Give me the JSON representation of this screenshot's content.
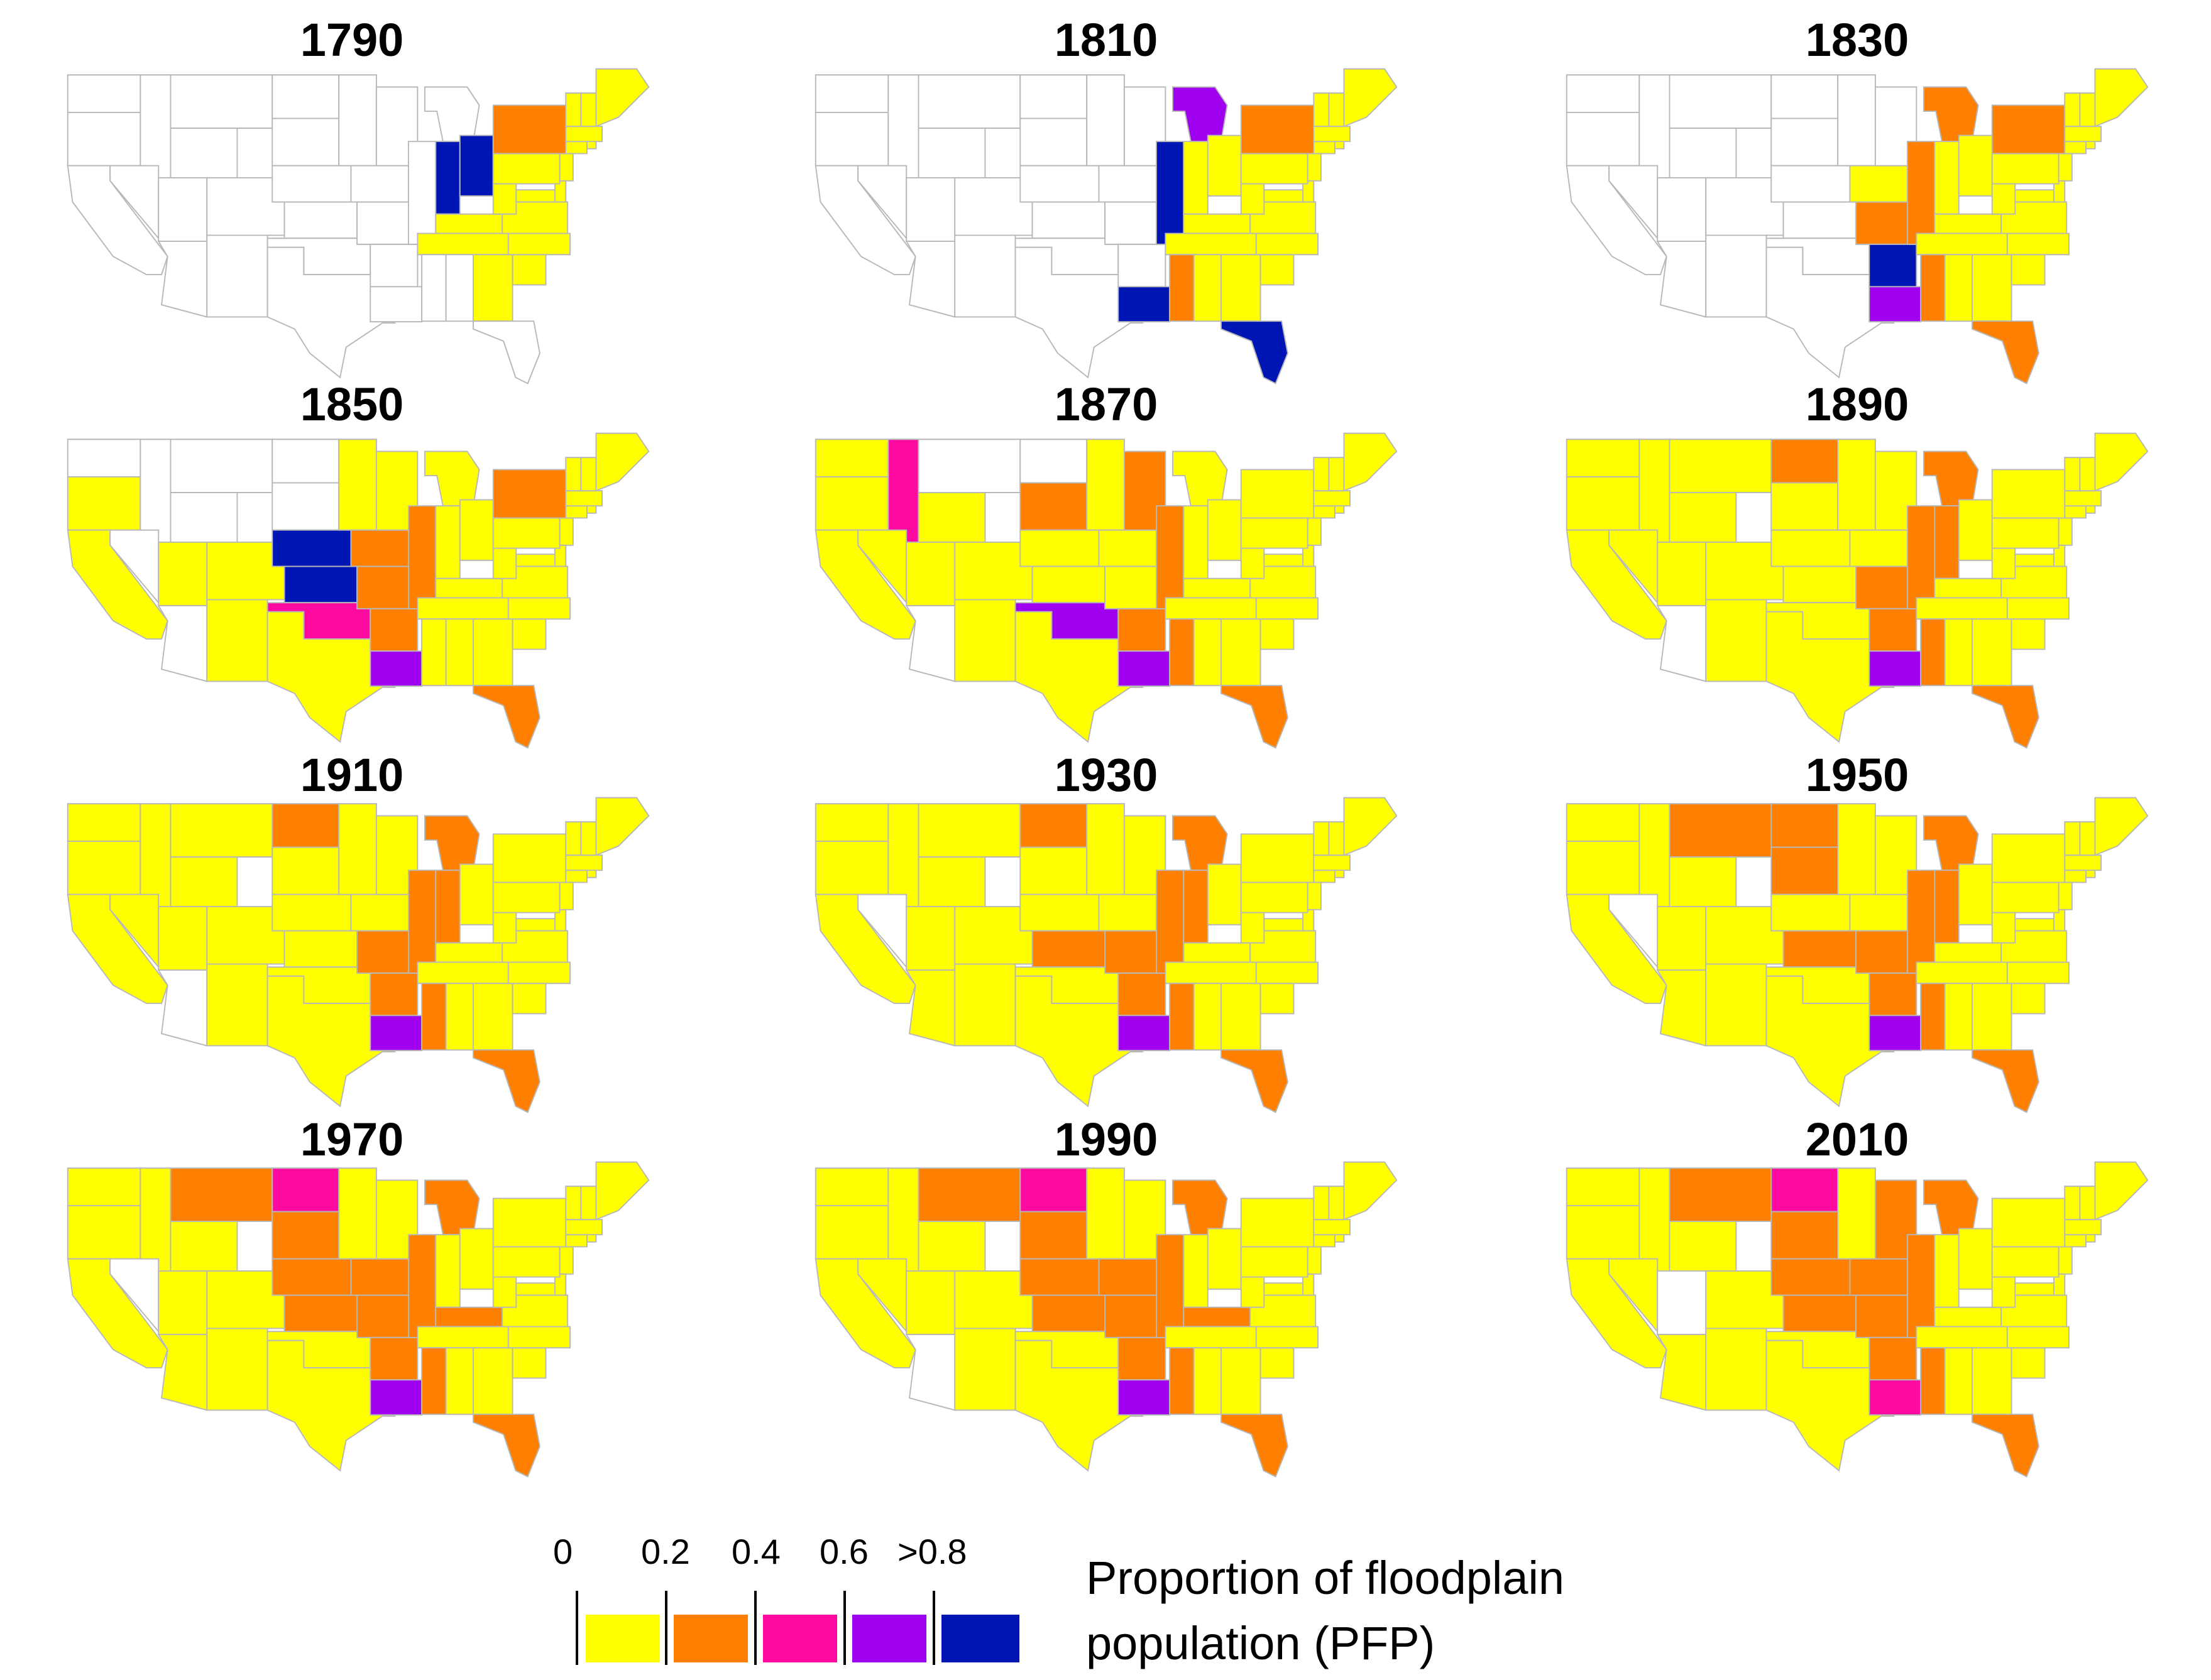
{
  "legend": {
    "title_line1": "Proportion of floodplain",
    "title_line2": "population (PFP)",
    "ticks": [
      "0",
      "0.2",
      "0.4",
      "0.6",
      ">0.8"
    ],
    "classes": [
      {
        "range": "0-0.2",
        "color": "#ffff00"
      },
      {
        "range": "0.2-0.4",
        "color": "#ff8000"
      },
      {
        "range": "0.4-0.6",
        "color": "#ff0aa0"
      },
      {
        "range": "0.6-0.8",
        "color": "#a000f0"
      },
      {
        "range": ">0.8",
        "color": "#0016b4"
      }
    ]
  },
  "colors": {
    "no_data": "#ffffff",
    "boundary": "#b8b8b8",
    "c1": "#ffff00",
    "c2": "#ff8000",
    "c3": "#ff0aa0",
    "c4": "#a000f0",
    "c5": "#0016b4"
  },
  "panels": [
    {
      "year": "1790",
      "classes": {
        "OH": 5,
        "IN": 5,
        "KY": 1,
        "TN": 1,
        "NY": 2,
        "VT": 1,
        "NH": 1,
        "ME": 1,
        "MA": 1,
        "RI": 1,
        "CT": 1,
        "NJ": 1,
        "PA": 1,
        "DE": 1,
        "MD": 1,
        "VA": 1,
        "WV": 1,
        "NC": 1,
        "SC": 1,
        "GA": 1
      }
    },
    {
      "year": "1810",
      "classes": {
        "IL": 5,
        "MI": 4,
        "IN": 1,
        "OH": 1,
        "KY": 1,
        "TN": 1,
        "NY": 2,
        "VT": 1,
        "NH": 1,
        "ME": 1,
        "MA": 1,
        "RI": 1,
        "CT": 1,
        "NJ": 1,
        "PA": 1,
        "DE": 1,
        "MD": 1,
        "VA": 1,
        "WV": 1,
        "NC": 1,
        "SC": 1,
        "GA": 1,
        "AL": 1,
        "MS": 2,
        "LA": 5,
        "FL": 5
      }
    },
    {
      "year": "1830",
      "classes": {
        "IA": 1,
        "MO": 2,
        "AR": 5,
        "LA": 4,
        "IL": 2,
        "MI": 2,
        "MS": 2,
        "IN": 1,
        "OH": 1,
        "KY": 1,
        "TN": 1,
        "NY": 2,
        "VT": 1,
        "NH": 1,
        "ME": 1,
        "MA": 1,
        "RI": 1,
        "CT": 1,
        "NJ": 1,
        "PA": 1,
        "DE": 1,
        "MD": 1,
        "VA": 1,
        "WV": 1,
        "NC": 1,
        "SC": 1,
        "GA": 1,
        "AL": 1,
        "FL": 2
      }
    },
    {
      "year": "1850",
      "classes": {
        "CA": 1,
        "OR": 1,
        "UT": 1,
        "CO": 1,
        "NM": 1,
        "TX": 1,
        "NE": 5,
        "KS": 5,
        "OK": 3,
        "MN": 1,
        "IA": 2,
        "MO": 2,
        "AR": 2,
        "LA": 4,
        "WI": 1,
        "IL": 2,
        "MI": 1,
        "IN": 1,
        "OH": 1,
        "KY": 1,
        "TN": 1,
        "MS": 1,
        "AL": 1,
        "GA": 1,
        "FL": 2,
        "SC": 1,
        "NC": 1,
        "VA": 1,
        "WV": 1,
        "MD": 1,
        "DE": 1,
        "PA": 1,
        "NJ": 1,
        "NY": 2,
        "CT": 1,
        "RI": 1,
        "MA": 1,
        "VT": 1,
        "NH": 1,
        "ME": 1
      }
    },
    {
      "year": "1870",
      "all": 1,
      "classes": {
        "ID": 3,
        "MT": 0,
        "ND": 0,
        "SD": 2,
        "AZ": 0,
        "OK": 4,
        "WI": 2,
        "IL": 2,
        "AR": 2,
        "LA": 4,
        "MS": 2,
        "FL": 2
      }
    },
    {
      "year": "1890",
      "all": 1,
      "classes": {
        "AZ": 0,
        "ND": 2,
        "AR": 2,
        "LA": 4,
        "MS": 2,
        "IL": 2,
        "IN": 2,
        "MI": 2,
        "MO": 2,
        "FL": 2
      }
    },
    {
      "year": "1910",
      "all": 1,
      "classes": {
        "AZ": 0,
        "ND": 2,
        "MO": 2,
        "AR": 2,
        "IL": 2,
        "IN": 2,
        "MI": 2,
        "LA": 4,
        "MS": 2,
        "FL": 2
      }
    },
    {
      "year": "1930",
      "all": 1,
      "classes": {
        "NV": 0,
        "ND": 2,
        "KS": 2,
        "MO": 2,
        "AR": 2,
        "IL": 2,
        "IN": 2,
        "MI": 2,
        "LA": 4,
        "MS": 2,
        "FL": 2
      }
    },
    {
      "year": "1950",
      "all": 1,
      "classes": {
        "NV": 0,
        "MT": 2,
        "ND": 2,
        "SD": 2,
        "KS": 2,
        "MO": 2,
        "AR": 2,
        "IL": 2,
        "IN": 2,
        "MI": 2,
        "LA": 4,
        "MS": 2,
        "FL": 2
      }
    },
    {
      "year": "1970",
      "all": 1,
      "classes": {
        "NV": 0,
        "MT": 2,
        "ND": 3,
        "SD": 2,
        "NE": 2,
        "KS": 2,
        "IA": 2,
        "MO": 2,
        "AR": 2,
        "IL": 2,
        "KY": 2,
        "MI": 2,
        "LA": 4,
        "MS": 2,
        "FL": 2
      }
    },
    {
      "year": "1990",
      "all": 1,
      "classes": {
        "AZ": 0,
        "MT": 2,
        "ND": 3,
        "SD": 2,
        "NE": 2,
        "KS": 2,
        "IA": 2,
        "MO": 2,
        "AR": 2,
        "IL": 2,
        "KY": 2,
        "MI": 2,
        "LA": 4,
        "MS": 2,
        "FL": 2
      }
    },
    {
      "year": "2010",
      "all": 1,
      "classes": {
        "UT": 0,
        "MT": 2,
        "ND": 3,
        "SD": 2,
        "NE": 2,
        "KS": 2,
        "IA": 2,
        "MO": 2,
        "AR": 2,
        "IL": 2,
        "WI": 2,
        "MI": 2,
        "LA": 3,
        "MS": 2,
        "FL": 2
      }
    }
  ]
}
